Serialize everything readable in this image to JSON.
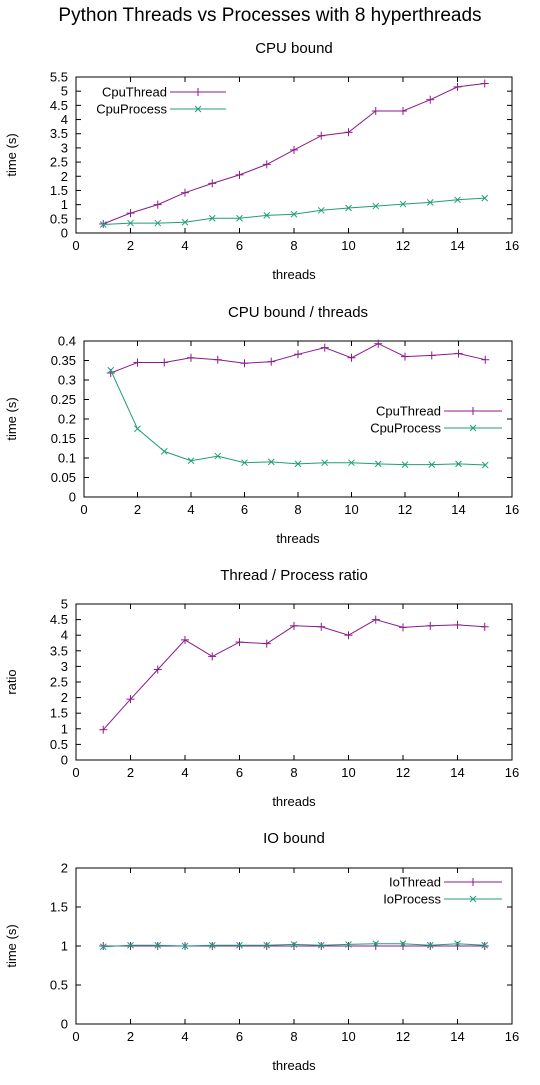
{
  "figure_title": "Python Threads vs Processes with 8 hyperthreads",
  "colors": {
    "thread": "#8b1a8b",
    "process": "#1f9e7a",
    "axis": "#000000"
  },
  "chart_data": [
    {
      "type": "line",
      "title": "CPU bound",
      "xlabel": "threads",
      "ylabel": "time (s)",
      "xlim": [
        0,
        16
      ],
      "ylim": [
        0,
        5.5
      ],
      "xticks": [
        "0",
        "2",
        "4",
        "6",
        "8",
        "10",
        "12",
        "14",
        "16"
      ],
      "yticks": [
        "0",
        "0.5",
        "1",
        "1.5",
        "2",
        "2.5",
        "3",
        "3.5",
        "4",
        "4.5",
        "5",
        "5.5"
      ],
      "legend": "top-left",
      "x": [
        1,
        2,
        3,
        4,
        5,
        6,
        7,
        8,
        9,
        10,
        11,
        12,
        13,
        14,
        15
      ],
      "series": [
        {
          "name": "CpuThread",
          "color": "#8b1a8b",
          "marker": "plus",
          "values": [
            0.32,
            0.7,
            1.0,
            1.42,
            1.75,
            2.05,
            2.42,
            2.93,
            3.43,
            3.55,
            4.3,
            4.3,
            4.7,
            5.15,
            5.27
          ]
        },
        {
          "name": "CpuProcess",
          "color": "#1f9e7a",
          "marker": "x",
          "values": [
            0.3,
            0.35,
            0.35,
            0.38,
            0.52,
            0.52,
            0.62,
            0.66,
            0.8,
            0.88,
            0.95,
            1.02,
            1.08,
            1.17,
            1.23
          ]
        }
      ]
    },
    {
      "type": "line",
      "title": "CPU bound / threads",
      "xlabel": "threads",
      "ylabel": "time (s)",
      "xlim": [
        0,
        16
      ],
      "ylim": [
        0,
        0.4
      ],
      "xticks": [
        "0",
        "2",
        "4",
        "6",
        "8",
        "10",
        "12",
        "14",
        "16"
      ],
      "yticks": [
        "0",
        "0.05",
        "0.1",
        "0.15",
        "0.2",
        "0.25",
        "0.3",
        "0.35",
        "0.4"
      ],
      "legend": "middle-right",
      "x": [
        1,
        2,
        3,
        4,
        5,
        6,
        7,
        8,
        9,
        10,
        11,
        12,
        13,
        14,
        15
      ],
      "series": [
        {
          "name": "CpuThread",
          "color": "#8b1a8b",
          "marker": "plus",
          "values": [
            0.318,
            0.345,
            0.345,
            0.357,
            0.352,
            0.343,
            0.347,
            0.366,
            0.383,
            0.357,
            0.393,
            0.36,
            0.363,
            0.368,
            0.352
          ]
        },
        {
          "name": "CpuProcess",
          "color": "#1f9e7a",
          "marker": "x",
          "values": [
            0.325,
            0.175,
            0.117,
            0.093,
            0.105,
            0.088,
            0.09,
            0.085,
            0.088,
            0.088,
            0.085,
            0.083,
            0.083,
            0.085,
            0.082
          ]
        }
      ]
    },
    {
      "type": "line",
      "title": "Thread / Process ratio",
      "xlabel": "threads",
      "ylabel": "ratio",
      "xlim": [
        0,
        16
      ],
      "ylim": [
        0,
        5
      ],
      "xticks": [
        "0",
        "2",
        "4",
        "6",
        "8",
        "10",
        "12",
        "14",
        "16"
      ],
      "yticks": [
        "0",
        "0.5",
        "1",
        "1.5",
        "2",
        "2.5",
        "3",
        "3.5",
        "4",
        "4.5",
        "5"
      ],
      "legend": "none",
      "x": [
        1,
        2,
        3,
        4,
        5,
        6,
        7,
        8,
        9,
        10,
        11,
        12,
        13,
        14,
        15
      ],
      "series": [
        {
          "name": "",
          "color": "#8b1a8b",
          "marker": "plus",
          "values": [
            0.97,
            1.95,
            2.9,
            3.85,
            3.32,
            3.78,
            3.73,
            4.3,
            4.27,
            4.0,
            4.5,
            4.25,
            4.3,
            4.33,
            4.27
          ]
        }
      ]
    },
    {
      "type": "line",
      "title": "IO bound",
      "xlabel": "threads",
      "ylabel": "time (s)",
      "xlim": [
        0,
        16
      ],
      "ylim": [
        0,
        2
      ],
      "xticks": [
        "0",
        "2",
        "4",
        "6",
        "8",
        "10",
        "12",
        "14",
        "16"
      ],
      "yticks": [
        "0",
        "0.5",
        "1",
        "1.5",
        "2"
      ],
      "legend": "top-right",
      "x": [
        1,
        2,
        3,
        4,
        5,
        6,
        7,
        8,
        9,
        10,
        11,
        12,
        13,
        14,
        15
      ],
      "series": [
        {
          "name": "IoThread",
          "color": "#8b1a8b",
          "marker": "plus",
          "values": [
            1.0,
            1.0,
            1.0,
            1.0,
            1.0,
            1.0,
            1.0,
            1.0,
            1.0,
            1.0,
            1.0,
            1.0,
            1.0,
            1.0,
            1.0
          ]
        },
        {
          "name": "IoProcess",
          "color": "#1f9e7a",
          "marker": "x",
          "values": [
            0.99,
            1.01,
            1.01,
            1.0,
            1.01,
            1.01,
            1.01,
            1.02,
            1.01,
            1.02,
            1.03,
            1.03,
            1.01,
            1.03,
            1.01
          ]
        }
      ]
    }
  ]
}
